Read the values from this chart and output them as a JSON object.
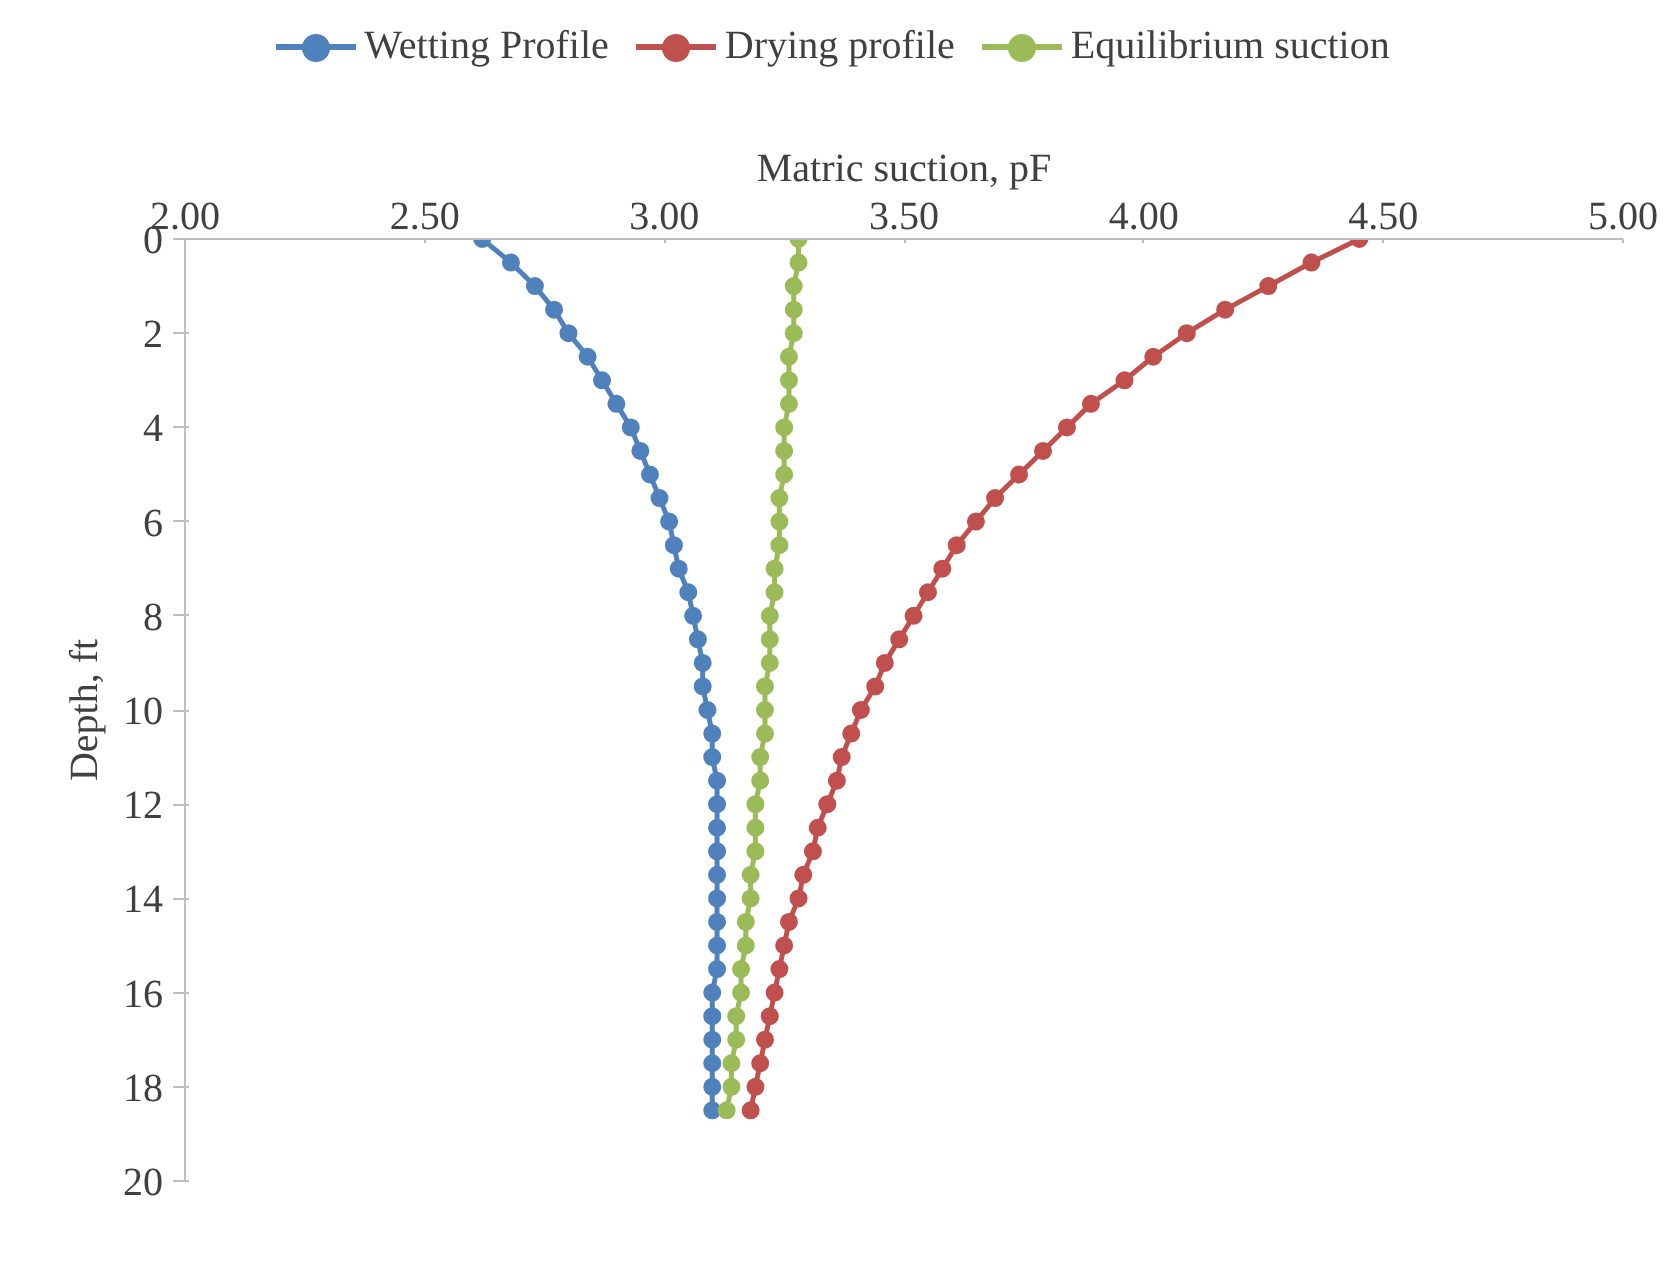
{
  "chart_data": {
    "type": "line",
    "xlabel": "Matric suction, pF",
    "ylabel": "Depth, ft",
    "xlim": [
      2.0,
      5.0
    ],
    "xticks": [
      {
        "value": 2.0,
        "label": "2.00"
      },
      {
        "value": 2.5,
        "label": "2.50"
      },
      {
        "value": 3.0,
        "label": "3.00"
      },
      {
        "value": 3.5,
        "label": "3.50"
      },
      {
        "value": 4.0,
        "label": "4.00"
      },
      {
        "value": 4.5,
        "label": "4.50"
      },
      {
        "value": 5.0,
        "label": "5.00"
      }
    ],
    "ylim": [
      20,
      0
    ],
    "yticks": [
      0,
      2,
      4,
      6,
      8,
      10,
      12,
      14,
      16,
      18,
      20
    ],
    "grid": false,
    "legend": "top",
    "marker": "circle",
    "line_style": "solid",
    "series": [
      {
        "name": "Wetting Profile",
        "color": "#4f81bd",
        "x": [
          2.62,
          2.68,
          2.73,
          2.77,
          2.8,
          2.84,
          2.87,
          2.9,
          2.93,
          2.95,
          2.97,
          2.99,
          3.01,
          3.02,
          3.03,
          3.05,
          3.06,
          3.07,
          3.08,
          3.08,
          3.09,
          3.1,
          3.1,
          3.11,
          3.11,
          3.11,
          3.11,
          3.11,
          3.11,
          3.11,
          3.11,
          3.11,
          3.1,
          3.1,
          3.1,
          3.1,
          3.1,
          3.1
        ],
        "values": [
          0,
          0.5,
          1,
          1.5,
          2,
          2.5,
          3,
          3.5,
          4,
          4.5,
          5,
          5.5,
          6,
          6.5,
          7,
          7.5,
          8,
          8.5,
          9,
          9.5,
          10,
          10.5,
          11,
          11.5,
          12,
          12.5,
          13,
          13.5,
          14,
          14.5,
          15,
          15.5,
          16,
          16.5,
          17,
          17.5,
          18,
          18.5
        ]
      },
      {
        "name": "Drying profile",
        "color": "#c0504d",
        "x": [
          4.45,
          4.35,
          4.26,
          4.17,
          4.09,
          4.02,
          3.96,
          3.89,
          3.84,
          3.79,
          3.74,
          3.69,
          3.65,
          3.61,
          3.58,
          3.55,
          3.52,
          3.49,
          3.46,
          3.44,
          3.41,
          3.39,
          3.37,
          3.36,
          3.34,
          3.32,
          3.31,
          3.29,
          3.28,
          3.26,
          3.25,
          3.24,
          3.23,
          3.22,
          3.21,
          3.2,
          3.19,
          3.18
        ],
        "values": [
          0,
          0.5,
          1,
          1.5,
          2,
          2.5,
          3,
          3.5,
          4,
          4.5,
          5,
          5.5,
          6,
          6.5,
          7,
          7.5,
          8,
          8.5,
          9,
          9.5,
          10,
          10.5,
          11,
          11.5,
          12,
          12.5,
          13,
          13.5,
          14,
          14.5,
          15,
          15.5,
          16,
          16.5,
          17,
          17.5,
          18,
          18.5
        ]
      },
      {
        "name": "Equilibrium suction",
        "color": "#9bbb59",
        "x": [
          3.28,
          3.28,
          3.27,
          3.27,
          3.27,
          3.26,
          3.26,
          3.26,
          3.25,
          3.25,
          3.25,
          3.24,
          3.24,
          3.24,
          3.23,
          3.23,
          3.22,
          3.22,
          3.22,
          3.21,
          3.21,
          3.21,
          3.2,
          3.2,
          3.19,
          3.19,
          3.19,
          3.18,
          3.18,
          3.17,
          3.17,
          3.16,
          3.16,
          3.15,
          3.15,
          3.14,
          3.14,
          3.13
        ],
        "values": [
          0,
          0.5,
          1,
          1.5,
          2,
          2.5,
          3,
          3.5,
          4,
          4.5,
          5,
          5.5,
          6,
          6.5,
          7,
          7.5,
          8,
          8.5,
          9,
          9.5,
          10,
          10.5,
          11,
          11.5,
          12,
          12.5,
          13,
          13.5,
          14,
          14.5,
          15,
          15.5,
          16,
          16.5,
          17,
          17.5,
          18,
          18.5
        ]
      }
    ]
  }
}
